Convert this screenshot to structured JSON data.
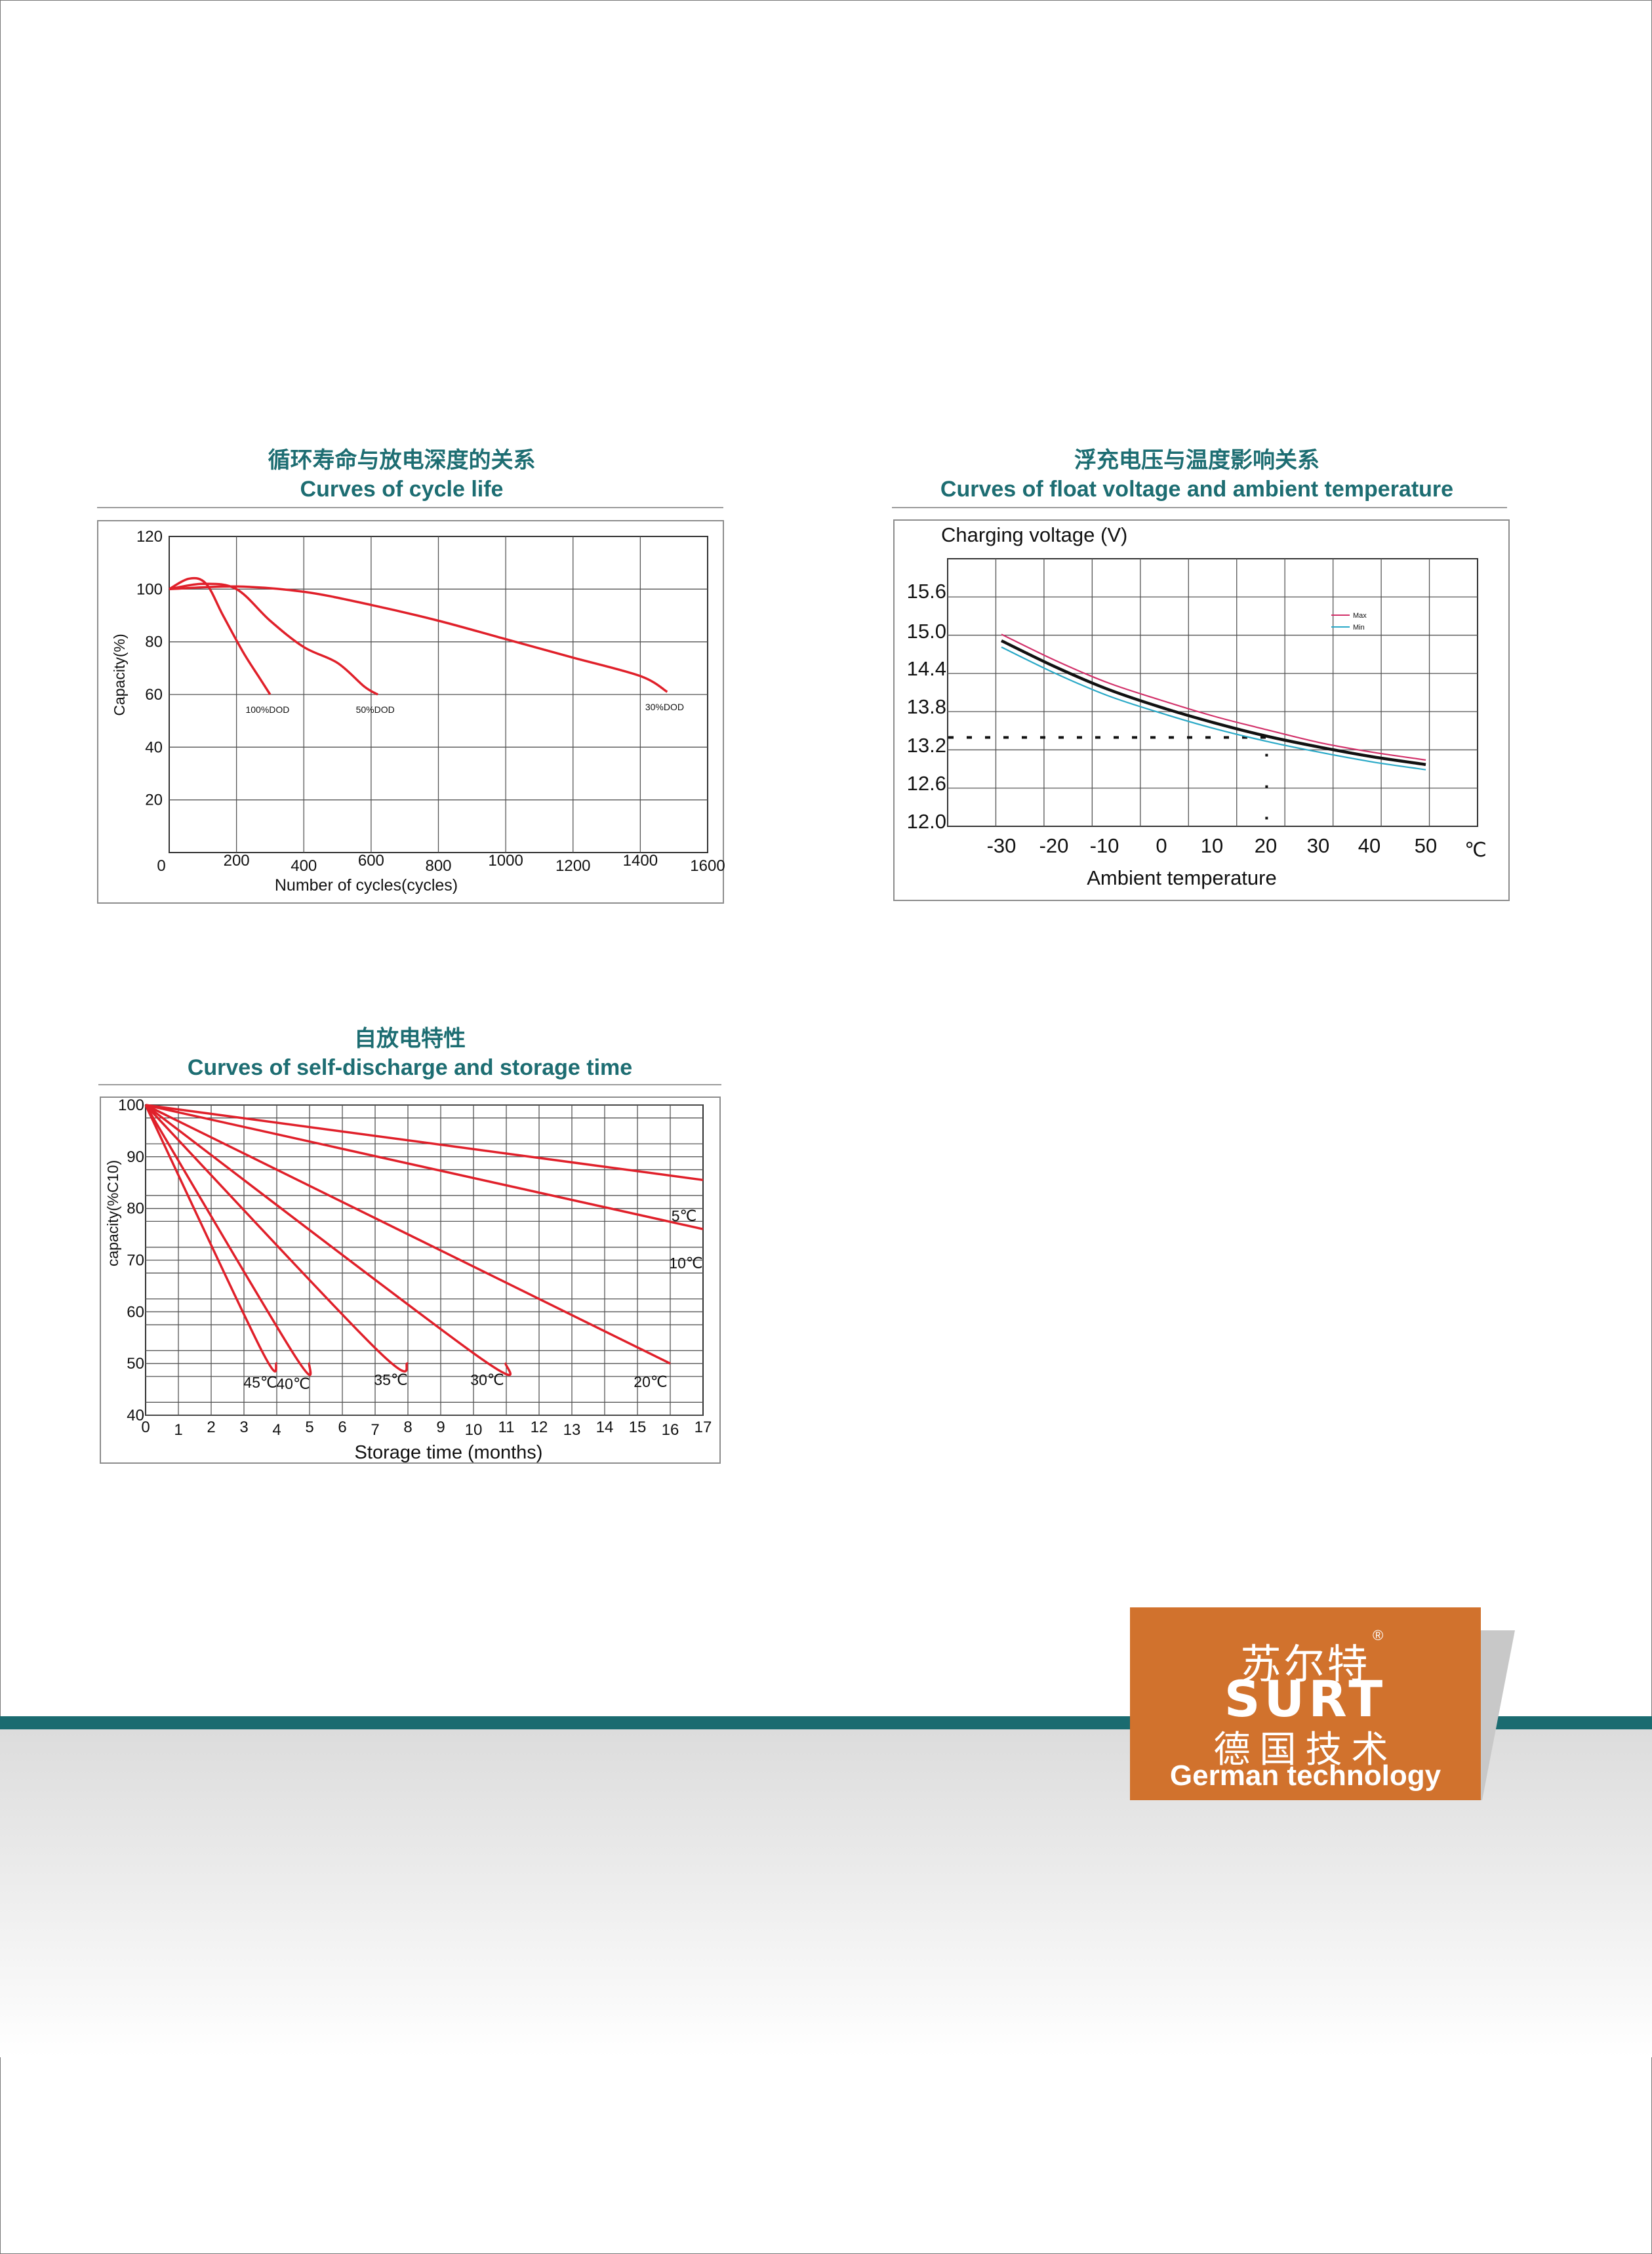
{
  "chart_data": [
    {
      "type": "line",
      "title_cn": "循环寿命与放电深度的关系",
      "title": "Curves of cycle life",
      "xlabel": "Number of cycles(cycles)",
      "ylabel": "Capacity(%)",
      "xlim": [
        0,
        1600
      ],
      "ylim": [
        0,
        120
      ],
      "xticks": [
        0,
        200,
        400,
        600,
        800,
        1000,
        1200,
        1400,
        1600
      ],
      "yticks": [
        20,
        40,
        60,
        80,
        100,
        120
      ],
      "y_zero_label": "0",
      "grid": true,
      "color": "#e0202a",
      "series": [
        {
          "name": "100%DOD",
          "x": [
            0,
            60,
            110,
            160,
            220,
            270,
            300
          ],
          "y": [
            100,
            104,
            102,
            90,
            76,
            66,
            60
          ]
        },
        {
          "name": "50%DOD",
          "x": [
            0,
            100,
            200,
            300,
            400,
            500,
            580,
            620
          ],
          "y": [
            100,
            102,
            100,
            88,
            78,
            72,
            63,
            60
          ]
        },
        {
          "name": "30%DOD",
          "x": [
            0,
            200,
            400,
            600,
            800,
            1000,
            1200,
            1400,
            1480
          ],
          "y": [
            100,
            101,
            99,
            94,
            88,
            81,
            74,
            67,
            61
          ]
        }
      ]
    },
    {
      "type": "line",
      "title_cn": "浮充电压与温度影响关系",
      "title": "Curves of float voltage and ambient temperature",
      "ylabel": "Charging voltage (V)",
      "xlabel": "Ambient temperature",
      "x_unit": "℃",
      "xlim": [
        -40,
        60
      ],
      "ylim": [
        12.0,
        16.2
      ],
      "xticks": [
        -30,
        -20,
        -10,
        0,
        10,
        20,
        30,
        40,
        50
      ],
      "yticks": [
        12.0,
        12.6,
        13.2,
        13.8,
        14.4,
        15.0,
        15.6
      ],
      "ytick_labels": [
        "12.0",
        "12.6",
        "13.2",
        "13.8",
        "14.4",
        "15.0",
        "15.6"
      ],
      "grid": true,
      "legend": "top-right",
      "reference_line_y": 13.5,
      "reference_line_x": 20,
      "series": [
        {
          "name": "Max",
          "color": "#d2316a",
          "x": [
            -30,
            -20,
            -10,
            0,
            10,
            20,
            30,
            40,
            50
          ],
          "y": [
            15.1,
            14.7,
            14.35,
            14.08,
            13.83,
            13.62,
            13.42,
            13.27,
            13.15
          ]
        },
        {
          "name": "",
          "color": "#111111",
          "x": [
            -30,
            -20,
            -10,
            0,
            10,
            20,
            30,
            40,
            50
          ],
          "y": [
            15.0,
            14.6,
            14.25,
            13.97,
            13.73,
            13.52,
            13.35,
            13.2,
            13.08
          ]
        },
        {
          "name": "Min",
          "color": "#2aa9c7",
          "x": [
            -30,
            -20,
            -10,
            0,
            10,
            20,
            30,
            40,
            50
          ],
          "y": [
            14.9,
            14.5,
            14.15,
            13.88,
            13.64,
            13.44,
            13.27,
            13.12,
            13.0
          ]
        }
      ]
    },
    {
      "type": "line",
      "title_cn": "自放电特性",
      "title": "Curves of self-discharge and storage time",
      "xlabel": "Storage time (months)",
      "ylabel": "capacity(%C10)",
      "xlim": [
        0,
        17
      ],
      "ylim": [
        40,
        100
      ],
      "xticks": [
        0,
        1,
        2,
        3,
        4,
        5,
        6,
        7,
        8,
        9,
        10,
        11,
        12,
        13,
        14,
        15,
        16,
        17
      ],
      "yticks": [
        40,
        50,
        60,
        70,
        80,
        90,
        100
      ],
      "grid": true,
      "color": "#e0202a",
      "series": [
        {
          "name": "5℃",
          "x": [
            0,
            17
          ],
          "y": [
            100,
            85.5
          ]
        },
        {
          "name": "10℃",
          "x": [
            0,
            17
          ],
          "y": [
            100,
            76
          ]
        },
        {
          "name": "20℃",
          "x": [
            0,
            16
          ],
          "y": [
            100,
            50
          ]
        },
        {
          "name": "30℃",
          "x": [
            0,
            10,
            11
          ],
          "y": [
            100,
            52,
            50
          ]
        },
        {
          "name": "35℃",
          "x": [
            0,
            7,
            8
          ],
          "y": [
            100,
            53,
            50
          ]
        },
        {
          "name": "40℃",
          "x": [
            0,
            4.5,
            5
          ],
          "y": [
            100,
            52,
            50
          ]
        },
        {
          "name": "45℃",
          "x": [
            0,
            3.5,
            4
          ],
          "y": [
            100,
            53,
            50
          ]
        }
      ]
    }
  ],
  "logo": {
    "name_cn": "苏尔特",
    "reg": "®",
    "name_en": "SURT",
    "tag_cn": "德国技术",
    "tag_en": "German technology",
    "color": "#d1722d"
  },
  "theme": {
    "band": "#1b6b70",
    "title": "#1d6d72"
  }
}
